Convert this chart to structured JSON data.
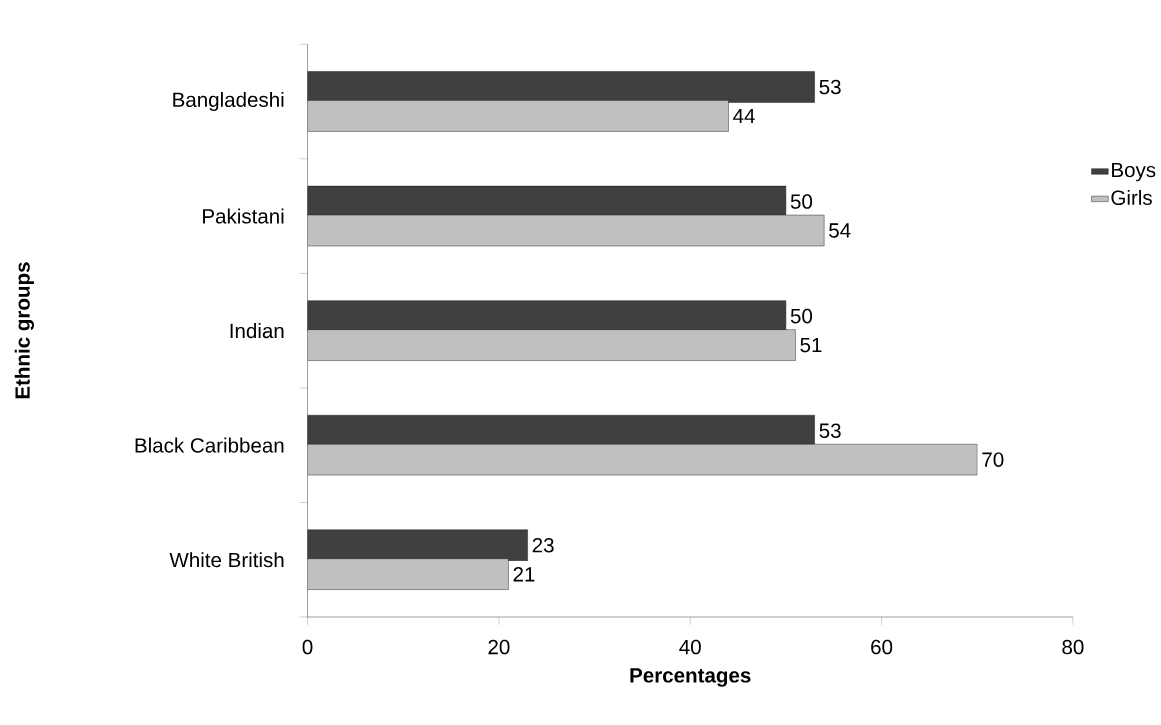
{
  "chart_data": {
    "type": "bar",
    "orientation": "horizontal",
    "xlabel": "Percentages",
    "ylabel": "Ethnic groups",
    "categories": [
      "Bangladeshi",
      "Pakistani",
      "Indian",
      "Black Caribbean",
      "White British"
    ],
    "series": [
      {
        "name": "Boys",
        "color": "#404040",
        "values": [
          53,
          50,
          50,
          53,
          23
        ]
      },
      {
        "name": "Girls",
        "color": "#c0c0c0",
        "values": [
          44,
          54,
          51,
          70,
          21
        ]
      }
    ],
    "xlim": [
      0,
      80
    ],
    "xticks": [
      0,
      20,
      40,
      60,
      80
    ],
    "data_labels": true,
    "legend": "right",
    "grid": false
  }
}
